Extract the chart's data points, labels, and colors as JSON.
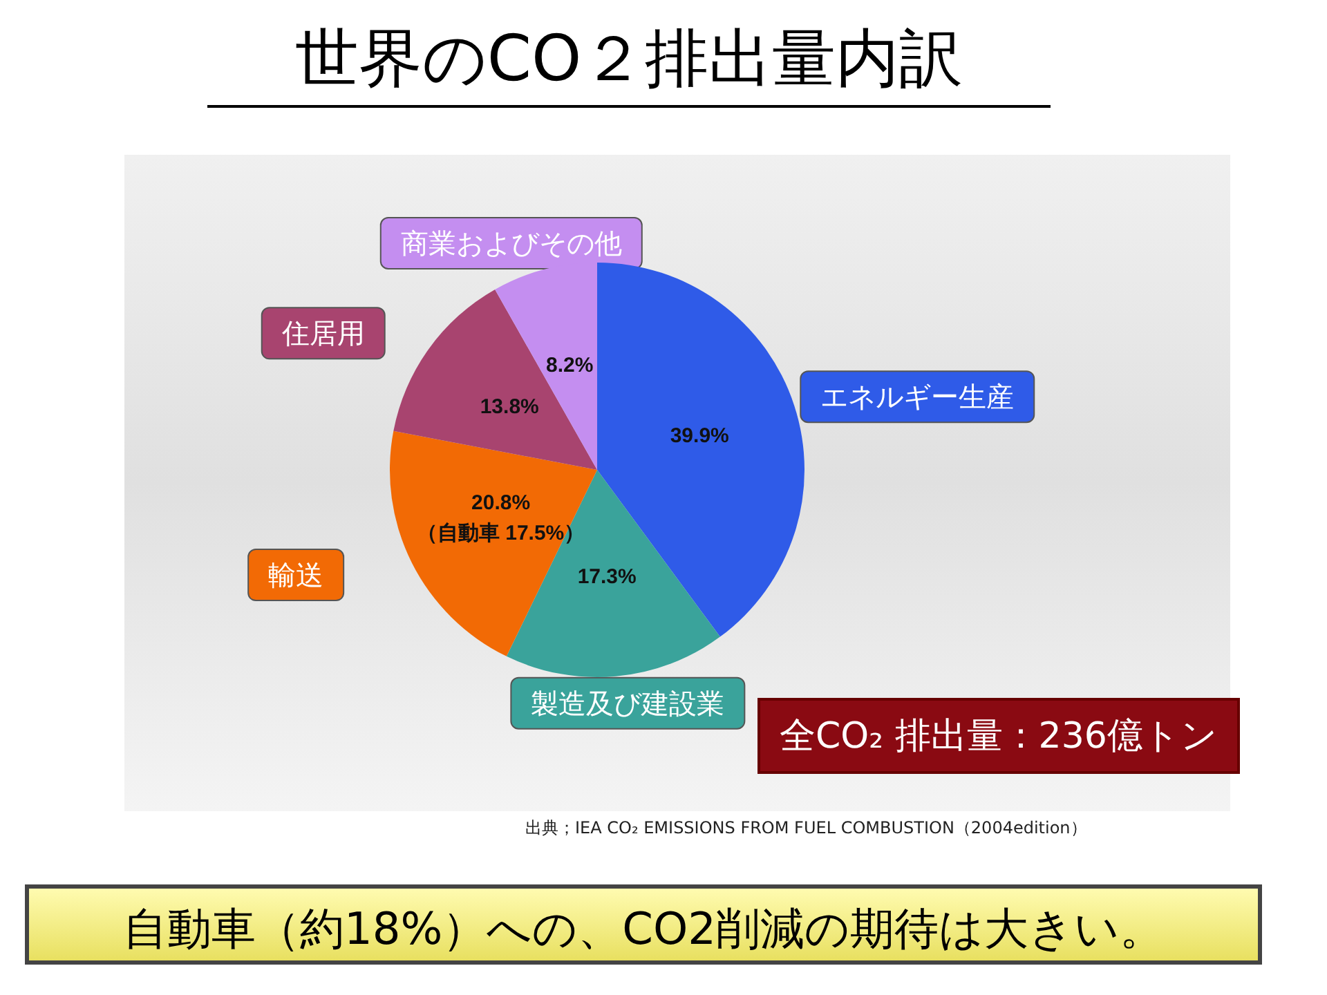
{
  "chart_data": {
    "type": "pie",
    "title": "世界のCO２排出量内訳",
    "categories": [
      "エネルギー生産",
      "製造及び建設業",
      "輸送",
      "住居用",
      "商業およびその他"
    ],
    "values": [
      39.9,
      17.3,
      20.8,
      13.8,
      8.2
    ],
    "colors": [
      "#2f5be8",
      "#3aa39b",
      "#f26a05",
      "#a8446f",
      "#c48ef0"
    ],
    "value_labels": [
      "39.9%",
      "17.3%",
      "20.8%\n（自動車 17.5%）",
      "13.8%",
      "8.2%"
    ],
    "annotations": [
      "全CO₂ 排出量：236億トン",
      "出典；IEA CO₂ EMISSIONS FROM FUEL COMBUSTION（2004edition）",
      "自動車（約18%）への、CO2削減の期待は大きい。"
    ],
    "legend": false
  }
}
